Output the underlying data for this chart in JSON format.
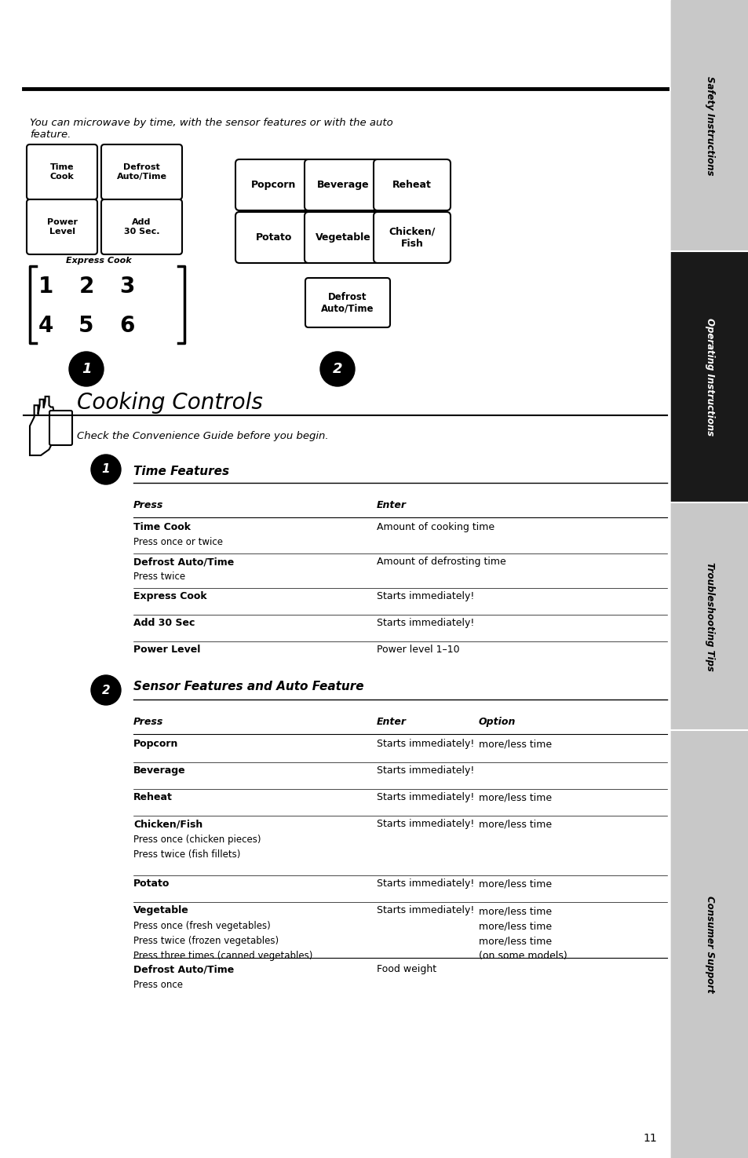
{
  "bg_color": "#ffffff",
  "sidebar_color": "#c8c8c8",
  "sidebar_dark_color": "#1a1a1a",
  "page_width": 9.54,
  "page_height": 14.75,
  "intro_text": "You can microwave by time, with the sensor features or with the auto\nfeature.",
  "title": "Cooking Controls",
  "subtitle": "Check the Convenience Guide before you begin.",
  "section1_title": "Time Features",
  "section2_title": "Sensor Features and Auto Feature",
  "page_number": "11"
}
